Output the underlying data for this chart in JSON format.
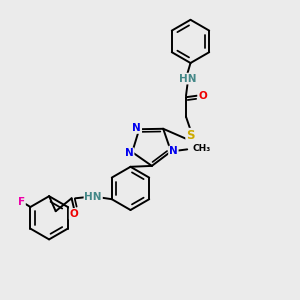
{
  "background_color": "#ebebeb",
  "atom_colors": {
    "N": "#0000ee",
    "O": "#ee0000",
    "S": "#ccaa00",
    "F": "#ee00aa",
    "HN": "#448888",
    "C": "#000000"
  },
  "bond_color": "#000000",
  "bond_width": 1.4
}
